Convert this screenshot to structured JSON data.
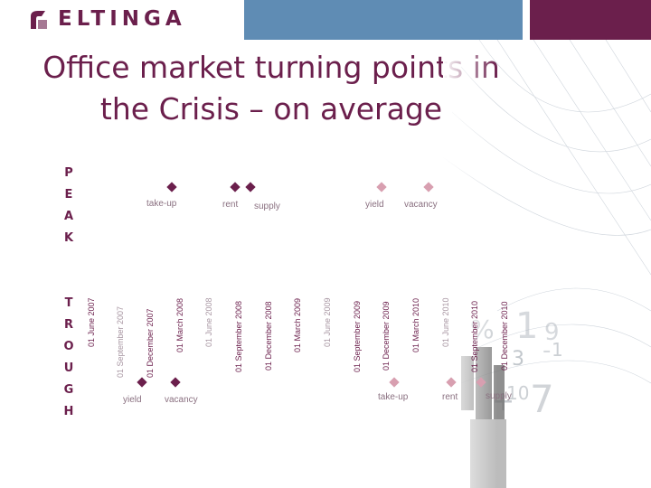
{
  "header": {
    "logo_text": "ELTINGA",
    "colors": {
      "blue": "#5f8cb4",
      "purple": "#6b1f4c",
      "marker_dark": "#6b1f4c",
      "marker_light": "#d89fb0"
    }
  },
  "title": {
    "line1": "Office market turning points in",
    "line2": "the Crisis – on average"
  },
  "peak": {
    "letters": [
      "P",
      "E",
      "A",
      "K"
    ],
    "markers": [
      {
        "label": "take-up",
        "style": "dark"
      },
      {
        "label": "rent",
        "style": "dark"
      },
      {
        "label": "supply",
        "style": "dark"
      },
      {
        "label": "yield",
        "style": "light"
      },
      {
        "label": "vacancy",
        "style": "light"
      }
    ]
  },
  "trough": {
    "letters": [
      "T",
      "R",
      "O",
      "U",
      "G",
      "H"
    ],
    "markers": [
      {
        "label": "yield",
        "style": "dark"
      },
      {
        "label": "vacancy",
        "style": "dark"
      },
      {
        "label": "take-up",
        "style": "light"
      },
      {
        "label": "rent",
        "style": "light"
      },
      {
        "label": "supply",
        "style": "light"
      }
    ]
  },
  "timeline": [
    "01 June 2007",
    "01 September 2007",
    "01 December 2007",
    "01 March 2008",
    "01 June 2008",
    "01 September 2008",
    "01 December 2008",
    "01 March 2009",
    "01 June 2009",
    "01 September 2009",
    "01 December 2009",
    "01 March 2010",
    "01 June 2010",
    "01 September 2010",
    "01 December 2010"
  ]
}
